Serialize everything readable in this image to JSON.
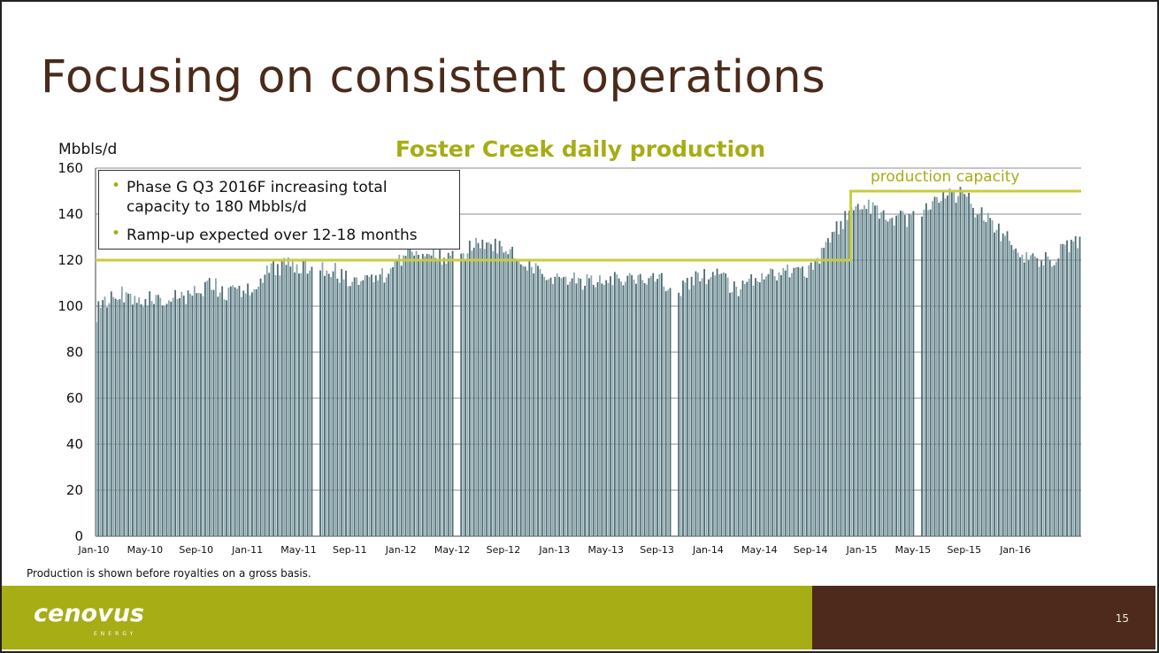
{
  "slide": {
    "title": "Focusing on consistent operations",
    "footnote": "Production is shown before royalties on a gross basis.",
    "page_number": "15",
    "logo_text": "cenovus",
    "logo_subtext": "ENERGY"
  },
  "callout": {
    "items": [
      "Phase G Q3 2016F increasing total capacity to 180 Mbbls/d",
      "Ramp-up expected over 12-18 months"
    ]
  },
  "colors": {
    "title": "#4a2a1a",
    "chart_title": "#a6ad15",
    "bars": "#4d6b73",
    "bars_light": "#8aa6ad",
    "capacity_line": "#c8ce3c",
    "footer_green": "#a6ad15",
    "footer_brown": "#4d2a1c",
    "grid": "#8c8c8c"
  },
  "chart_data": {
    "type": "bar",
    "title": "Foster Creek daily production",
    "ylabel": "Mbbls/d",
    "xlabel": "",
    "ylim": [
      0,
      160
    ],
    "yticks": [
      0,
      20,
      40,
      60,
      80,
      100,
      120,
      140,
      160
    ],
    "x_range": [
      "2010-01",
      "2016-05"
    ],
    "tick_labels": [
      "Jan-10",
      "May-10",
      "Sep-10",
      "Jan-11",
      "May-11",
      "Sep-11",
      "Jan-12",
      "May-12",
      "Sep-12",
      "Jan-13",
      "May-13",
      "Sep-13",
      "Jan-14",
      "May-14",
      "Sep-14",
      "Jan-15",
      "May-15",
      "Sep-15",
      "Jan-16"
    ],
    "grid": true,
    "series": [
      {
        "role": "daily production",
        "monthly_approx": [
          {
            "month": "2010-01",
            "value": 97
          },
          {
            "month": "2010-02",
            "value": 104
          },
          {
            "month": "2010-03",
            "value": 106
          },
          {
            "month": "2010-04",
            "value": 104
          },
          {
            "month": "2010-05",
            "value": 103
          },
          {
            "month": "2010-06",
            "value": 103
          },
          {
            "month": "2010-07",
            "value": 104
          },
          {
            "month": "2010-08",
            "value": 104
          },
          {
            "month": "2010-09",
            "value": 106
          },
          {
            "month": "2010-10",
            "value": 111
          },
          {
            "month": "2010-11",
            "value": 104
          },
          {
            "month": "2010-12",
            "value": 106
          },
          {
            "month": "2011-01",
            "value": 108
          },
          {
            "month": "2011-02",
            "value": 113
          },
          {
            "month": "2011-03",
            "value": 117
          },
          {
            "month": "2011-04",
            "value": 118
          },
          {
            "month": "2011-05",
            "value": 118
          },
          {
            "month": "2011-06",
            "value": 118
          },
          {
            "month": "2011-07",
            "value": 117
          },
          {
            "month": "2011-08",
            "value": 114
          },
          {
            "month": "2011-09",
            "value": 111
          },
          {
            "month": "2011-10",
            "value": 110
          },
          {
            "month": "2011-11",
            "value": 111
          },
          {
            "month": "2011-12",
            "value": 116
          },
          {
            "month": "2012-01",
            "value": 122
          },
          {
            "month": "2012-02",
            "value": 123
          },
          {
            "month": "2012-03",
            "value": 121
          },
          {
            "month": "2012-04",
            "value": 121
          },
          {
            "month": "2012-05",
            "value": 120
          },
          {
            "month": "2012-06",
            "value": 124
          },
          {
            "month": "2012-07",
            "value": 127
          },
          {
            "month": "2012-08",
            "value": 127
          },
          {
            "month": "2012-09",
            "value": 124
          },
          {
            "month": "2012-10",
            "value": 120
          },
          {
            "month": "2012-11",
            "value": 116
          },
          {
            "month": "2012-12",
            "value": 114
          },
          {
            "month": "2013-01",
            "value": 113
          },
          {
            "month": "2013-02",
            "value": 112
          },
          {
            "month": "2013-03",
            "value": 111
          },
          {
            "month": "2013-04",
            "value": 110
          },
          {
            "month": "2013-05",
            "value": 111
          },
          {
            "month": "2013-06",
            "value": 112
          },
          {
            "month": "2013-07",
            "value": 111
          },
          {
            "month": "2013-08",
            "value": 111
          },
          {
            "month": "2013-09",
            "value": 112
          },
          {
            "month": "2013-10",
            "value": 106
          },
          {
            "month": "2013-11",
            "value": 108
          },
          {
            "month": "2013-12",
            "value": 112
          },
          {
            "month": "2014-01",
            "value": 114
          },
          {
            "month": "2014-02",
            "value": 112
          },
          {
            "month": "2014-03",
            "value": 107
          },
          {
            "month": "2014-04",
            "value": 110
          },
          {
            "month": "2014-05",
            "value": 112
          },
          {
            "month": "2014-06",
            "value": 114
          },
          {
            "month": "2014-07",
            "value": 115
          },
          {
            "month": "2014-08",
            "value": 114
          },
          {
            "month": "2014-09",
            "value": 118
          },
          {
            "month": "2014-10",
            "value": 126
          },
          {
            "month": "2014-11",
            "value": 135
          },
          {
            "month": "2014-12",
            "value": 140
          },
          {
            "month": "2015-01",
            "value": 145
          },
          {
            "month": "2015-02",
            "value": 141
          },
          {
            "month": "2015-03",
            "value": 136
          },
          {
            "month": "2015-04",
            "value": 138
          },
          {
            "month": "2015-05",
            "value": 139
          },
          {
            "month": "2015-06",
            "value": 142
          },
          {
            "month": "2015-07",
            "value": 146
          },
          {
            "month": "2015-08",
            "value": 149
          },
          {
            "month": "2015-09",
            "value": 147
          },
          {
            "month": "2015-10",
            "value": 140
          },
          {
            "month": "2015-11",
            "value": 135
          },
          {
            "month": "2015-12",
            "value": 130
          },
          {
            "month": "2016-01",
            "value": 125
          },
          {
            "month": "2016-02",
            "value": 121
          },
          {
            "month": "2016-03",
            "value": 120
          },
          {
            "month": "2016-04",
            "value": 121
          },
          {
            "month": "2016-05",
            "value": 127
          }
        ],
        "outage_gaps": [
          "2011-06",
          "2012-05",
          "2013-10",
          "2015-05"
        ]
      },
      {
        "name": "production capacity",
        "type": "step-line",
        "steps": [
          {
            "from": "2010-01",
            "to": "2014-12",
            "value": 120
          },
          {
            "from": "2014-12",
            "to": "2016-05",
            "value": 150
          }
        ]
      }
    ]
  }
}
